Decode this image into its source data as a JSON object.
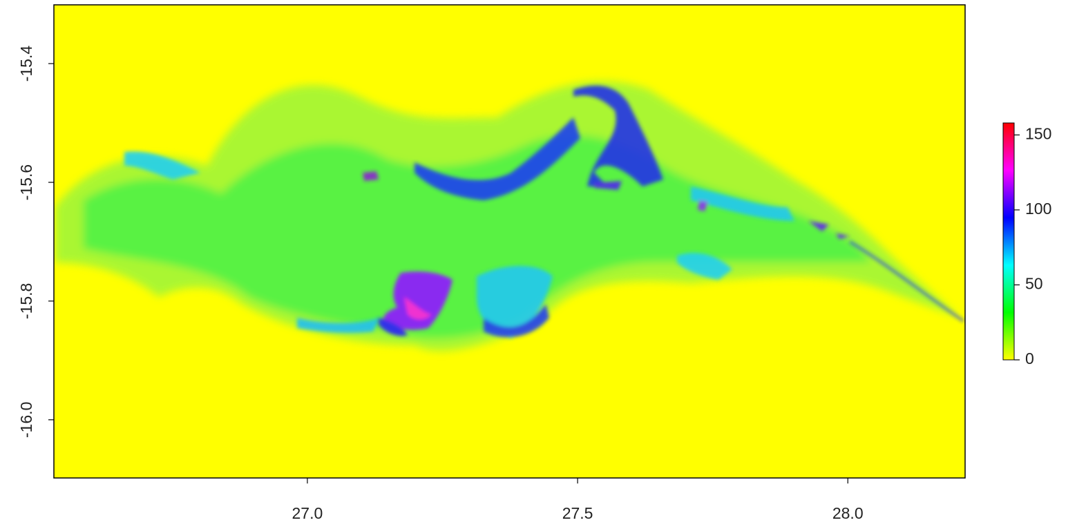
{
  "chart_data": {
    "type": "raster",
    "xlim": [
      26.531,
      28.217
    ],
    "ylim": [
      -16.098,
      -15.301
    ],
    "xticks": [
      {
        "value": 27,
        "label": "27.0"
      },
      27.5,
      {
        "value": 28,
        "label": "28.0"
      }
    ],
    "yticks": [
      -15.4,
      -15.6,
      -15.8,
      {
        "value": -16,
        "label": "-16.0"
      }
    ],
    "zlim": [
      0,
      158
    ],
    "zticks": [
      0,
      50,
      100,
      150
    ],
    "colors": [
      "#ffff00",
      "#00ff00",
      "#00ffff",
      "#0000ff",
      "#ff00ff",
      "#ff0000"
    ]
  }
}
